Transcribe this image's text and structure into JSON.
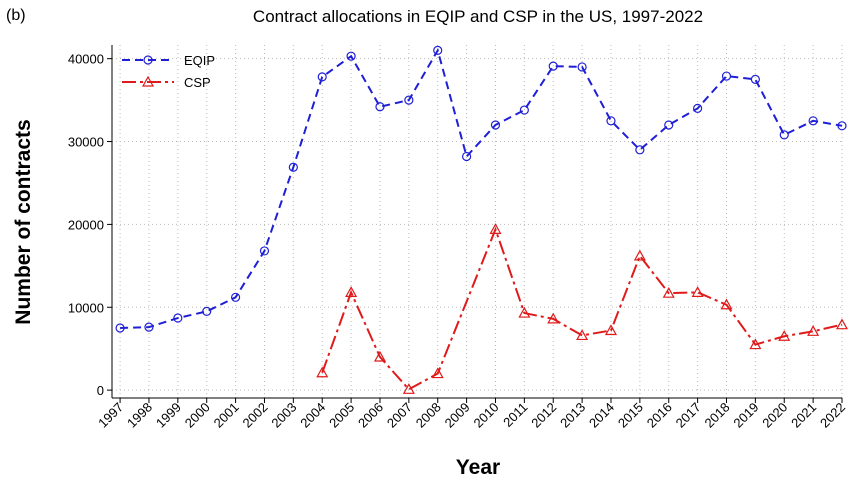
{
  "chart_data": {
    "type": "line",
    "panel_label": "(b)",
    "title": "Contract allocations in EQIP and CSP in the US, 1997-2022",
    "xlabel": "Year",
    "ylabel": "Number of contracts",
    "x": [
      1997,
      1998,
      1999,
      2000,
      2001,
      2002,
      2003,
      2004,
      2005,
      2006,
      2007,
      2008,
      2009,
      2010,
      2011,
      2012,
      2013,
      2014,
      2015,
      2016,
      2017,
      2018,
      2019,
      2020,
      2021,
      2022
    ],
    "series": [
      {
        "name": "EQIP",
        "color": "#1f1fd6",
        "marker": "circle",
        "dash": "8 5",
        "values": [
          7500,
          7600,
          8700,
          9500,
          11200,
          16800,
          26900,
          37800,
          40300,
          34200,
          35000,
          41000,
          28200,
          32000,
          33800,
          39100,
          39000,
          32500,
          29000,
          32000,
          34000,
          37900,
          37500,
          30800,
          32500,
          31900
        ]
      },
      {
        "name": "CSP",
        "color": "#e01a1a",
        "marker": "triangle",
        "dash": "14 4 3 4",
        "x": [
          2004,
          2005,
          2006,
          2007,
          2008,
          2010,
          2011,
          2012,
          2013,
          2014,
          2015,
          2016,
          2017,
          2018,
          2019,
          2020,
          2021,
          2022
        ],
        "values": [
          2100,
          11800,
          4000,
          100,
          2000,
          19400,
          9300,
          8600,
          6600,
          7200,
          16200,
          11700,
          11800,
          10300,
          5500,
          6500,
          7100,
          7900
        ]
      }
    ],
    "xlim": [
      1996.72,
      2022
    ],
    "xticks": [
      1997,
      1998,
      1999,
      2000,
      2001,
      2002,
      2003,
      2004,
      2005,
      2006,
      2007,
      2008,
      2009,
      2010,
      2011,
      2012,
      2013,
      2014,
      2015,
      2016,
      2017,
      2018,
      2019,
      2020,
      2021,
      2022
    ],
    "ylim": [
      -950,
      41650
    ],
    "yticks": [
      0,
      10000,
      20000,
      30000,
      40000
    ],
    "grid": true,
    "legend": "upper left"
  }
}
